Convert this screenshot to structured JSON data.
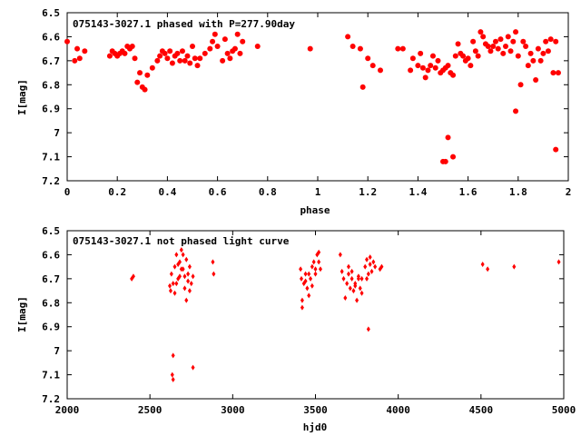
{
  "chart_data": [
    {
      "type": "scatter",
      "title": "075143-3027.1 phased with P=277.90day",
      "xlabel": "phase",
      "ylabel": "I[mag]",
      "xlim": [
        0,
        2
      ],
      "ylim": [
        7.2,
        6.5
      ],
      "y_inverted": true,
      "grid": false,
      "legend": "none",
      "marker": "filled-circle",
      "color": "#ff0000",
      "x_ticks": [
        "0",
        "0.2",
        "0.4",
        "0.6",
        "0.8",
        "1",
        "1.2",
        "1.4",
        "1.6",
        "1.8",
        "2"
      ],
      "y_ticks": [
        "6.5",
        "6.6",
        "6.7",
        "6.8",
        "6.9",
        "7",
        "7.1",
        "7.2"
      ],
      "series": [
        {
          "x": [
            0.0,
            0.03,
            0.04,
            0.05,
            0.07,
            0.17,
            0.18,
            0.19,
            0.2,
            0.21,
            0.22,
            0.23,
            0.24,
            0.25,
            0.26,
            0.27,
            0.28,
            0.29,
            0.3,
            0.31,
            0.32,
            0.34,
            0.36,
            0.37,
            0.38,
            0.39,
            0.4,
            0.41,
            0.42,
            0.43,
            0.44,
            0.45,
            0.46,
            0.47,
            0.48,
            0.49,
            0.5,
            0.51,
            0.52,
            0.53,
            0.55,
            0.57,
            0.58,
            0.59,
            0.6,
            0.62,
            0.63,
            0.64,
            0.65,
            0.66,
            0.67,
            0.68,
            0.69,
            0.7,
            0.76,
            0.97,
            1.12,
            1.14,
            1.17,
            1.18,
            1.2,
            1.22,
            1.25,
            1.32,
            1.34,
            1.37,
            1.38,
            1.4,
            1.41,
            1.42,
            1.43,
            1.44,
            1.45,
            1.46,
            1.47,
            1.48,
            1.49,
            1.5,
            1.51,
            1.52,
            1.53,
            1.54,
            1.55,
            1.56,
            1.57,
            1.58,
            1.59,
            1.6,
            1.61,
            1.62,
            1.63,
            1.64,
            1.65,
            1.66,
            1.67,
            1.68,
            1.69,
            1.7,
            1.71,
            1.72,
            1.73,
            1.74,
            1.75,
            1.76,
            1.77,
            1.78,
            1.79,
            1.8,
            1.81,
            1.82,
            1.83,
            1.84,
            1.85,
            1.86,
            1.87,
            1.88,
            1.89,
            1.9,
            1.91,
            1.92,
            1.93,
            1.94,
            1.95,
            1.96,
            1.5,
            1.52,
            1.54,
            1.51,
            1.79,
            1.95
          ],
          "y": [
            6.62,
            6.7,
            6.65,
            6.69,
            6.66,
            6.68,
            6.66,
            6.67,
            6.68,
            6.67,
            6.66,
            6.67,
            6.64,
            6.65,
            6.64,
            6.69,
            6.79,
            6.75,
            6.81,
            6.82,
            6.76,
            6.73,
            6.7,
            6.68,
            6.66,
            6.67,
            6.69,
            6.66,
            6.71,
            6.68,
            6.67,
            6.7,
            6.66,
            6.7,
            6.68,
            6.71,
            6.64,
            6.69,
            6.72,
            6.69,
            6.67,
            6.65,
            6.62,
            6.59,
            6.64,
            6.7,
            6.61,
            6.67,
            6.69,
            6.66,
            6.65,
            6.59,
            6.67,
            6.62,
            6.64,
            6.65,
            6.6,
            6.64,
            6.65,
            6.81,
            6.69,
            6.72,
            6.74,
            6.65,
            6.65,
            6.74,
            6.69,
            6.72,
            6.67,
            6.73,
            6.77,
            6.74,
            6.72,
            6.68,
            6.73,
            6.7,
            6.75,
            6.74,
            6.73,
            6.72,
            6.75,
            6.76,
            6.68,
            6.63,
            6.67,
            6.68,
            6.7,
            6.69,
            6.72,
            6.62,
            6.66,
            6.68,
            6.58,
            6.6,
            6.63,
            6.64,
            6.66,
            6.64,
            6.62,
            6.65,
            6.61,
            6.67,
            6.64,
            6.6,
            6.66,
            6.62,
            6.58,
            6.68,
            6.8,
            6.62,
            6.64,
            6.72,
            6.67,
            6.7,
            6.78,
            6.65,
            6.7,
            6.67,
            6.62,
            6.66,
            6.61,
            6.75,
            6.62,
            6.75,
            7.12,
            7.02,
            7.1,
            7.12,
            6.91,
            7.07
          ]
        }
      ]
    },
    {
      "type": "scatter",
      "title": "075143-3027.1 not phased light curve",
      "xlabel": "hjd0",
      "ylabel": "I[mag]",
      "xlim": [
        2000,
        5000
      ],
      "ylim": [
        7.2,
        6.5
      ],
      "y_inverted": true,
      "grid": false,
      "legend": "none",
      "marker": "small-diamond",
      "color": "#ff0000",
      "x_ticks": [
        "2000",
        "2500",
        "3000",
        "3500",
        "4000",
        "4500",
        "5000"
      ],
      "y_ticks": [
        "6.5",
        "6.6",
        "6.7",
        "6.8",
        "6.9",
        "7",
        "7.1",
        "7.2"
      ],
      "series": [
        {
          "x": [
            2390,
            2400,
            2620,
            2625,
            2630,
            2640,
            2650,
            2660,
            2670,
            2680,
            2690,
            2700,
            2710,
            2720,
            2730,
            2740,
            2750,
            2650,
            2660,
            2670,
            2680,
            2690,
            2700,
            2710,
            2720,
            2730,
            2740,
            2760,
            2880,
            2885,
            3410,
            3415,
            3420,
            3430,
            3440,
            3450,
            3460,
            3470,
            3480,
            3490,
            3500,
            3510,
            3520,
            3530,
            3420,
            3440,
            3460,
            3480,
            3500,
            3520,
            3650,
            3660,
            3670,
            3680,
            3690,
            3700,
            3710,
            3720,
            3730,
            3740,
            3750,
            3760,
            3770,
            3780,
            3700,
            3720,
            3740,
            3760,
            3780,
            3800,
            3810,
            3820,
            3830,
            3840,
            3850,
            3860,
            3810,
            3830,
            3820,
            3890,
            3900,
            4510,
            4540,
            4700,
            4970,
            2640,
            2635,
            2640,
            2760
          ],
          "y": [
            6.7,
            6.69,
            6.73,
            6.75,
            6.68,
            6.72,
            6.65,
            6.6,
            6.7,
            6.63,
            6.58,
            6.66,
            6.69,
            6.62,
            6.68,
            6.75,
            6.72,
            6.76,
            6.72,
            6.64,
            6.69,
            6.66,
            6.6,
            6.74,
            6.79,
            6.71,
            6.65,
            6.69,
            6.63,
            6.68,
            6.66,
            6.7,
            6.82,
            6.72,
            6.68,
            6.74,
            6.68,
            6.7,
            6.65,
            6.63,
            6.66,
            6.6,
            6.63,
            6.66,
            6.79,
            6.71,
            6.77,
            6.73,
            6.68,
            6.59,
            6.6,
            6.67,
            6.7,
            6.78,
            6.72,
            6.68,
            6.74,
            6.7,
            6.75,
            6.72,
            6.79,
            6.69,
            6.74,
            6.7,
            6.65,
            6.67,
            6.73,
            6.7,
            6.76,
            6.65,
            6.62,
            6.68,
            6.64,
            6.67,
            6.63,
            6.65,
            6.7,
            6.61,
            6.91,
            6.66,
            6.65,
            6.64,
            6.66,
            6.65,
            6.63,
            7.02,
            7.1,
            7.12,
            7.07
          ]
        }
      ]
    }
  ]
}
